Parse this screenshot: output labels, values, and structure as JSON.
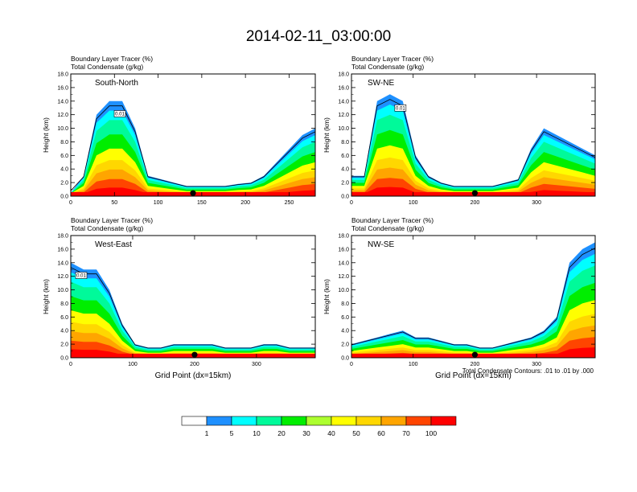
{
  "title": "2014-02-11_03:00:00",
  "colors": {
    "levels": [
      "#ffffff",
      "#1e90ff",
      "#00ffff",
      "#00fa9a",
      "#00ee00",
      "#adff2f",
      "#ffff00",
      "#ffd700",
      "#ffa500",
      "#ff4500",
      "#ff0000"
    ],
    "contour": "#000000",
    "marker": "#000000"
  },
  "legend": {
    "labels": [
      "1",
      "5",
      "10",
      "20",
      "30",
      "40",
      "50",
      "60",
      "70",
      "100"
    ]
  },
  "contour_note": "Total Condensate Contours: .01 to .01 by .000",
  "chart_data": [
    {
      "type": "heatmap",
      "subtitle_line1": "Boundary Layer Tracer   (%)",
      "subtitle_line2": "Total Condensate   (g/kg)",
      "panel_label": "South-North",
      "ylabel": "Height (km)",
      "xlabel": "",
      "xlim": [
        0,
        280
      ],
      "ylim": [
        0,
        18
      ],
      "xticks": [
        "0",
        "50",
        "100",
        "150",
        "200",
        "250"
      ],
      "yticks": [
        "0.0",
        "2.0",
        "4.0",
        "6.0",
        "8.0",
        "10.0",
        "12.0",
        "14.0",
        "16.0",
        "18.0"
      ],
      "contour_label": "0.01",
      "marker_x": 140,
      "tracer_profile_top_km": [
        0.5,
        3,
        12,
        14,
        14,
        10,
        3,
        2.5,
        2,
        1.5,
        1.5,
        1.5,
        1.5,
        1.8,
        2,
        3,
        5,
        7,
        9,
        10
      ]
    },
    {
      "type": "heatmap",
      "subtitle_line1": "Boundary Layer Tracer   (%)",
      "subtitle_line2": "Total Condensate   (g/kg)",
      "panel_label": "SW-NE",
      "ylabel": "Height (km)",
      "xlabel": "",
      "xlim": [
        0,
        395
      ],
      "ylim": [
        0,
        18
      ],
      "xticks": [
        "0",
        "100",
        "200",
        "300"
      ],
      "yticks": [
        "0.0",
        "2.0",
        "4.0",
        "6.0",
        "8.0",
        "10.0",
        "12.0",
        "14.0",
        "16.0",
        "18.0"
      ],
      "contour_label": "0.01",
      "marker_x": 200,
      "tracer_profile_top_km": [
        3,
        3,
        14,
        15,
        14,
        6,
        3,
        2,
        1.5,
        1.5,
        1.5,
        1.5,
        2,
        2.5,
        7,
        10,
        9,
        8,
        7,
        6
      ]
    },
    {
      "type": "heatmap",
      "subtitle_line1": "Boundary Layer Tracer   (%)",
      "subtitle_line2": "Total Condensate   (g/kg)",
      "panel_label": "West-East",
      "ylabel": "Height (km)",
      "xlabel": "Grid Point (dx=15km)",
      "xlim": [
        0,
        395
      ],
      "ylim": [
        0,
        18
      ],
      "xticks": [
        "0",
        "100",
        "200",
        "300"
      ],
      "yticks": [
        "0.0",
        "2.0",
        "4.0",
        "6.0",
        "8.0",
        "10.0",
        "12.0",
        "14.0",
        "16.0",
        "18.0"
      ],
      "contour_label": "0.01",
      "marker_x": 200,
      "tracer_profile_top_km": [
        14,
        13,
        13,
        10,
        5,
        2,
        1.5,
        1.5,
        2,
        2,
        2,
        2,
        1.5,
        1.5,
        1.5,
        2,
        2,
        1.5,
        1.5,
        1.5
      ]
    },
    {
      "type": "heatmap",
      "subtitle_line1": "Boundary Layer Tracer   (%)",
      "subtitle_line2": "Total Condensate   (g/kg)",
      "panel_label": "NW-SE",
      "ylabel": "Height (km)",
      "xlabel": "Grid Point (dx=15km)",
      "xlim": [
        0,
        395
      ],
      "ylim": [
        0,
        18
      ],
      "xticks": [
        "0",
        "100",
        "200",
        "300"
      ],
      "yticks": [
        "0.0",
        "2.0",
        "4.0",
        "6.0",
        "8.0",
        "10.0",
        "12.0",
        "14.0",
        "16.0",
        "18.0"
      ],
      "contour_label": "0.01",
      "marker_x": 200,
      "tracer_profile_top_km": [
        2,
        2.5,
        3,
        3.5,
        4,
        3,
        3,
        2.5,
        2,
        2,
        1.5,
        1.5,
        2,
        2.5,
        3,
        4,
        6,
        14,
        16,
        17
      ]
    }
  ]
}
